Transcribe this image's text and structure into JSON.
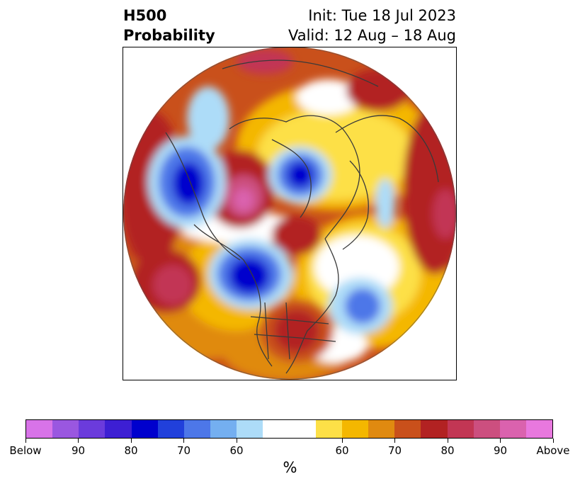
{
  "header": {
    "title_line1": "H500",
    "title_line2": "Probability",
    "init_text": "Init: Tue 18 Jul 2023",
    "valid_text": "Valid: 12 Aug – 18 Aug"
  },
  "map": {
    "projection": "north-polar-stereographic",
    "features": [
      "coastlines",
      "country-borders",
      "state-borders"
    ]
  },
  "colorbar": {
    "unit": "%",
    "colors": [
      "#d873e8",
      "#9a57e0",
      "#6b3bdc",
      "#3d1fd3",
      "#0000cd",
      "#2140db",
      "#4d77e8",
      "#74aff0",
      "#addcf8",
      "#ffffff",
      "#ffffff",
      "#fde047",
      "#f4b700",
      "#e08a10",
      "#c9501b",
      "#b22222",
      "#c23654",
      "#cc4f7f",
      "#da62ae",
      "#e878de"
    ],
    "ticks": [
      {
        "label": "Below",
        "index": 0
      },
      {
        "label": "90",
        "index": 2
      },
      {
        "label": "80",
        "index": 4
      },
      {
        "label": "70",
        "index": 6
      },
      {
        "label": "60",
        "index": 8
      },
      {
        "label": "60",
        "index": 12
      },
      {
        "label": "70",
        "index": 14
      },
      {
        "label": "80",
        "index": 16
      },
      {
        "label": "90",
        "index": 18
      },
      {
        "label": "Above",
        "index": 20
      }
    ]
  }
}
